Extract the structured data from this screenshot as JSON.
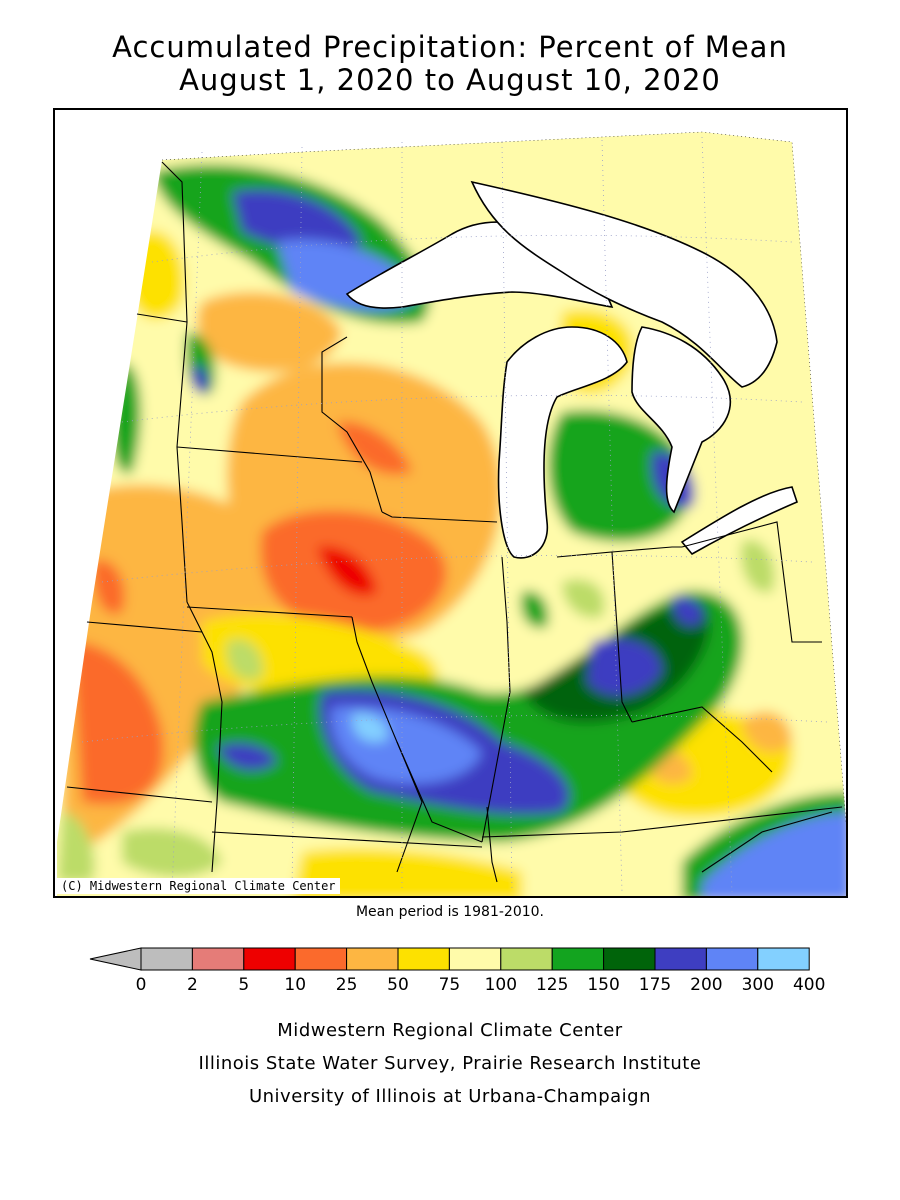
{
  "title": {
    "line1": "Accumulated Precipitation: Percent of Mean",
    "line2": "August 1, 2020 to August 10, 2020"
  },
  "map": {
    "copyright": "(C) Midwestern Regional Climate Center",
    "mean_note": "Mean period is 1981-2010."
  },
  "legend": {
    "ticks": [
      "0",
      "2",
      "5",
      "10",
      "25",
      "50",
      "75",
      "100",
      "125",
      "150",
      "175",
      "200",
      "300",
      "400"
    ],
    "colors": [
      "#bdbdbd",
      "#e57c78",
      "#ee0000",
      "#fb6a2c",
      "#fdb642",
      "#fde100",
      "#fffbaa",
      "#bcdc68",
      "#13a41f",
      "#00640a",
      "#3e3ec1",
      "#5f84f6",
      "#83d0ff"
    ]
  },
  "credits": {
    "line1": "Midwestern Regional Climate Center",
    "line2": "Illinois State Water Survey, Prairie Research Institute",
    "line3": "University of Illinois at Urbana-Champaign"
  },
  "colors": {
    "lake": "#ffffff",
    "border": "#000000",
    "grid": "#9aa0c8"
  }
}
